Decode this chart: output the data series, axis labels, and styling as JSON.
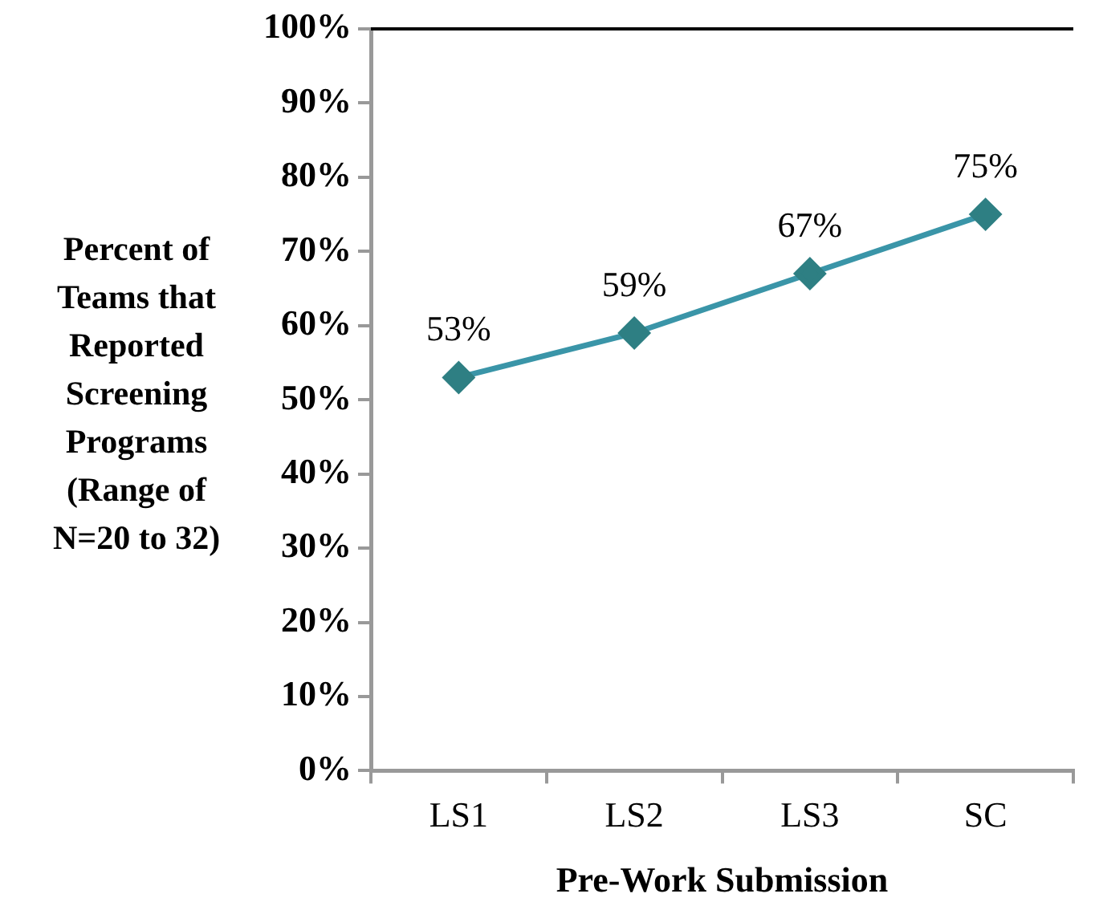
{
  "chart_data": {
    "type": "line",
    "xlabel": "Pre-Work Submission",
    "ylabel": "Percent of Teams that Reported Screening Programs (Range of N=20 to 32)",
    "categories": [
      "LS1",
      "LS2",
      "LS3",
      "SC"
    ],
    "series": [
      {
        "color": "#3a95a8",
        "values": [
          53,
          59,
          67,
          75
        ],
        "value_labels": [
          "53%",
          "59%",
          "67%",
          "75%"
        ]
      }
    ],
    "ylim": [
      0,
      100
    ],
    "yticks": [
      {
        "value": 0,
        "label": "0%"
      },
      {
        "value": 10,
        "label": "10%"
      },
      {
        "value": 20,
        "label": "20%"
      },
      {
        "value": 30,
        "label": "30%"
      },
      {
        "value": 40,
        "label": "40%"
      },
      {
        "value": 50,
        "label": "50%"
      },
      {
        "value": 60,
        "label": "60%"
      },
      {
        "value": 70,
        "label": "70%"
      },
      {
        "value": 80,
        "label": "80%"
      },
      {
        "value": 90,
        "label": "90%"
      },
      {
        "value": 100,
        "label": "100%"
      }
    ],
    "marker": "diamond",
    "grid": false,
    "legend": false
  }
}
